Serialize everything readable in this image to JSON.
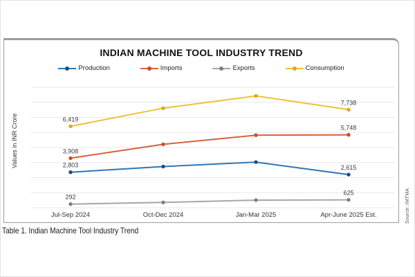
{
  "page": {
    "caption": "Table 1. Indian Machine Tool Industry Trend",
    "source_note": "Source: IMTMA"
  },
  "chart_data": {
    "type": "line",
    "title": "INDIAN MACHINE TOOL INDUSTRY TREND",
    "xlabel": "",
    "ylabel": "Values in INR Crore",
    "categories": [
      "Jul-Sep 2024",
      "Oct-Dec 2024",
      "Jan-Mar 2025",
      "Apr-June 2025 Est."
    ],
    "series": [
      {
        "name": "Production",
        "color": "#2E75B6",
        "marker_color": "#1F4E79",
        "values": [
          2803,
          3250,
          3600,
          2615
        ],
        "point_labels": [
          "2,803",
          "",
          "",
          "2,615"
        ]
      },
      {
        "name": "Imports",
        "color": "#D95F3B",
        "marker_color": "#C44F2E",
        "values": [
          3908,
          5000,
          5720,
          5748
        ],
        "point_labels": [
          "3,908",
          "",
          "",
          "5,748"
        ]
      },
      {
        "name": "Exports",
        "color": "#A6A6A6",
        "marker_color": "#808080",
        "values": [
          292,
          420,
          600,
          625
        ],
        "point_labels": [
          "292",
          "",
          "",
          "625"
        ]
      },
      {
        "name": "Consumption",
        "color": "#ECC234",
        "marker_color": "#D9A62E",
        "values": [
          6419,
          7850,
          8820,
          7738
        ],
        "point_labels": [
          "6,419",
          "",
          "",
          "7,738"
        ]
      }
    ],
    "ylim": [
      0,
      9500
    ],
    "grid": true,
    "gridline_count": 9,
    "grid_color": "#e9e9e9",
    "legend_position": "top",
    "note": "Only first and last points carry data labels in the figure; middle values estimated from gridlines."
  }
}
